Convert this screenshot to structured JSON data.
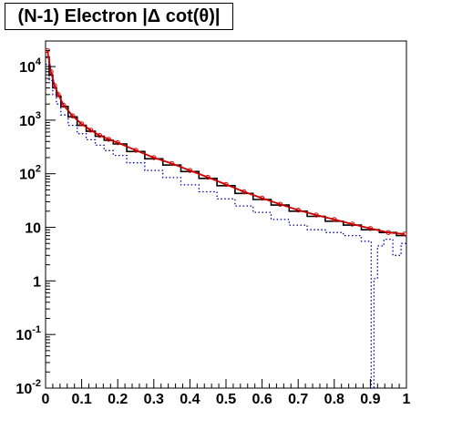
{
  "chart_data": {
    "type": "line",
    "title": "(N-1) Electron |Δ cot(θ)|",
    "xlabel": "",
    "ylabel": "",
    "xlim": [
      0,
      1
    ],
    "ylim": [
      0.01,
      30000
    ],
    "yscale": "log",
    "grid": false,
    "legend": "none",
    "x_ticks": [
      {
        "value": 0,
        "label": "0"
      },
      {
        "value": 0.1,
        "label": "0.1"
      },
      {
        "value": 0.2,
        "label": "0.2"
      },
      {
        "value": 0.3,
        "label": "0.3"
      },
      {
        "value": 0.4,
        "label": "0.4"
      },
      {
        "value": 0.5,
        "label": "0.5"
      },
      {
        "value": 0.6,
        "label": "0.6"
      },
      {
        "value": 0.7,
        "label": "0.7"
      },
      {
        "value": 0.8,
        "label": "0.8"
      },
      {
        "value": 0.9,
        "label": "0.9"
      },
      {
        "value": 1,
        "label": "1"
      }
    ],
    "y_ticks": [
      {
        "value": 0.01,
        "base": "10",
        "exp": "-2"
      },
      {
        "value": 0.1,
        "base": "10",
        "exp": "-1"
      },
      {
        "value": 1,
        "base": "1",
        "exp": ""
      },
      {
        "value": 10,
        "base": "10",
        "exp": ""
      },
      {
        "value": 100,
        "base": "10",
        "exp": "2"
      },
      {
        "value": 1000,
        "base": "10",
        "exp": "3"
      },
      {
        "value": 10000,
        "base": "10",
        "exp": "4"
      }
    ],
    "series": [
      {
        "style": "solid histogram",
        "color": "#000000",
        "x": [
          0.005,
          0.015,
          0.025,
          0.035,
          0.05,
          0.075,
          0.1,
          0.125,
          0.15,
          0.175,
          0.2,
          0.25,
          0.3,
          0.35,
          0.4,
          0.45,
          0.5,
          0.55,
          0.6,
          0.65,
          0.7,
          0.75,
          0.8,
          0.85,
          0.9,
          0.95,
          0.995
        ],
        "values": [
          15000,
          7000,
          4000,
          2800,
          1800,
          1150,
          800,
          620,
          500,
          420,
          360,
          260,
          190,
          145,
          110,
          82,
          60,
          43,
          33,
          26,
          20,
          16,
          13,
          11,
          9,
          8,
          7
        ]
      },
      {
        "style": "red line with open markers",
        "color": "#cc0000",
        "x": [
          0.005,
          0.015,
          0.025,
          0.035,
          0.05,
          0.075,
          0.1,
          0.125,
          0.15,
          0.175,
          0.2,
          0.25,
          0.3,
          0.35,
          0.4,
          0.45,
          0.5,
          0.55,
          0.6,
          0.65,
          0.7,
          0.75,
          0.8,
          0.85,
          0.9,
          0.95,
          0.995
        ],
        "values": [
          20000,
          8000,
          4400,
          3000,
          1900,
          1200,
          850,
          650,
          520,
          440,
          380,
          275,
          200,
          155,
          115,
          86,
          63,
          46,
          35,
          27,
          21,
          17,
          14,
          11.5,
          9.5,
          8,
          7.5
        ]
      },
      {
        "style": "blue dotted histogram",
        "color": "#0000aa",
        "x": [
          0.005,
          0.015,
          0.025,
          0.035,
          0.05,
          0.075,
          0.1,
          0.125,
          0.15,
          0.175,
          0.2,
          0.25,
          0.3,
          0.35,
          0.4,
          0.45,
          0.5,
          0.55,
          0.6,
          0.65,
          0.7,
          0.75,
          0.8,
          0.85,
          0.9,
          0.905,
          0.915,
          0.925,
          0.95,
          0.975,
          0.995
        ],
        "values": [
          11000,
          5500,
          3000,
          2000,
          1250,
          800,
          560,
          430,
          340,
          270,
          220,
          160,
          115,
          85,
          62,
          46,
          34,
          25,
          19,
          14,
          11,
          9,
          8,
          7,
          5.5,
          0.01,
          1.1,
          4.5,
          6,
          3,
          5
        ]
      }
    ]
  }
}
